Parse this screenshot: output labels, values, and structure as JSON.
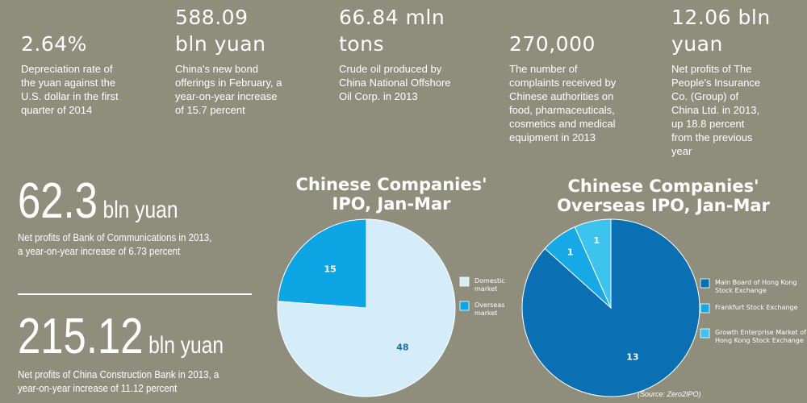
{
  "stats": [
    {
      "value": "2.64%",
      "desc": "Depreciation rate of\nthe yuan against the\nU.S. dollar in the first\nquarter of 2014"
    },
    {
      "value": "588.09\nbln yuan",
      "desc": "China's new bond\nofferings in February, a\nyear-on-year increase\nof 15.7 percent"
    },
    {
      "value": "66.84 mln\ntons",
      "desc": "Crude oil produced by\nChina National Offshore\nOil Corp. in 2013"
    },
    {
      "value": "270,000",
      "desc": "The number of\ncomplaints received by\nChinese authorities on\nfood, pharmaceuticals,\ncosmetics and medical\nequipment in 2013"
    },
    {
      "value": "12.06 bln\nyuan",
      "desc": "Net profits of The\nPeople's Insurance\nCo. (Group) of\nChina Ltd. in 2013,\nup 18.8 percent\nfrom the previous\nyear"
    }
  ],
  "heroes": [
    {
      "value": "62.3",
      "unit": "bln yuan",
      "desc": "Net profits of Bank of Communications in 2013,\na year-on-year increase of 6.73 percent"
    },
    {
      "value": "215.12",
      "unit": "bln yuan",
      "desc": "Net profits of China Construction Bank in 2013, a\nyear-on-year increase of 11.12 percent"
    }
  ],
  "chart_data": [
    {
      "type": "pie",
      "title": "Chinese Companies'\nIPO, Jan-Mar",
      "categories": [
        "Domestic\nmarket",
        "Overseas\nmarket"
      ],
      "values": [
        48,
        15
      ],
      "colors": [
        "#d5edfa",
        "#0ea5e4"
      ],
      "legend": "right"
    },
    {
      "type": "pie",
      "title": "Chinese Companies'\nOverseas IPO, Jan-Mar",
      "categories": [
        "Main Board of Hong Kong\nStock Exchange",
        "Frankfurt Stock Exchange",
        "Growth Enterprise Market of\nHong Kong Stock Exchange"
      ],
      "values": [
        13,
        1,
        1
      ],
      "colors": [
        "#0b6fb4",
        "#17a9e6",
        "#3cc3ee"
      ],
      "legend": "right"
    }
  ],
  "source": "(Source: Zero2IPO)"
}
